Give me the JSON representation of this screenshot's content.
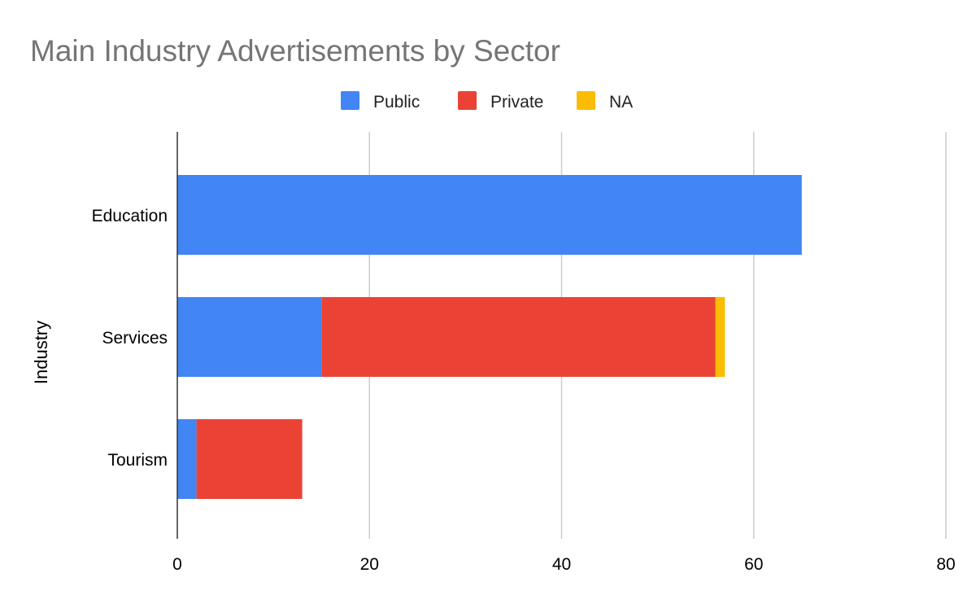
{
  "chart_data": {
    "type": "bar",
    "orientation": "horizontal",
    "stacked": true,
    "title": "Main Industry Advertisements by Sector",
    "xlabel": "",
    "ylabel": "Industry",
    "categories": [
      "Education",
      "Services",
      "Tourism"
    ],
    "series": [
      {
        "name": "Public",
        "color": "#4285f4",
        "values": [
          65,
          15,
          2
        ]
      },
      {
        "name": "Private",
        "color": "#ea4335",
        "values": [
          0,
          41,
          11
        ]
      },
      {
        "name": "NA",
        "color": "#fbbc04",
        "values": [
          0,
          1,
          0
        ]
      }
    ],
    "xlim": [
      0,
      80
    ],
    "xticks": [
      0,
      20,
      40,
      60,
      80
    ],
    "grid": true,
    "legend_position": "top"
  }
}
